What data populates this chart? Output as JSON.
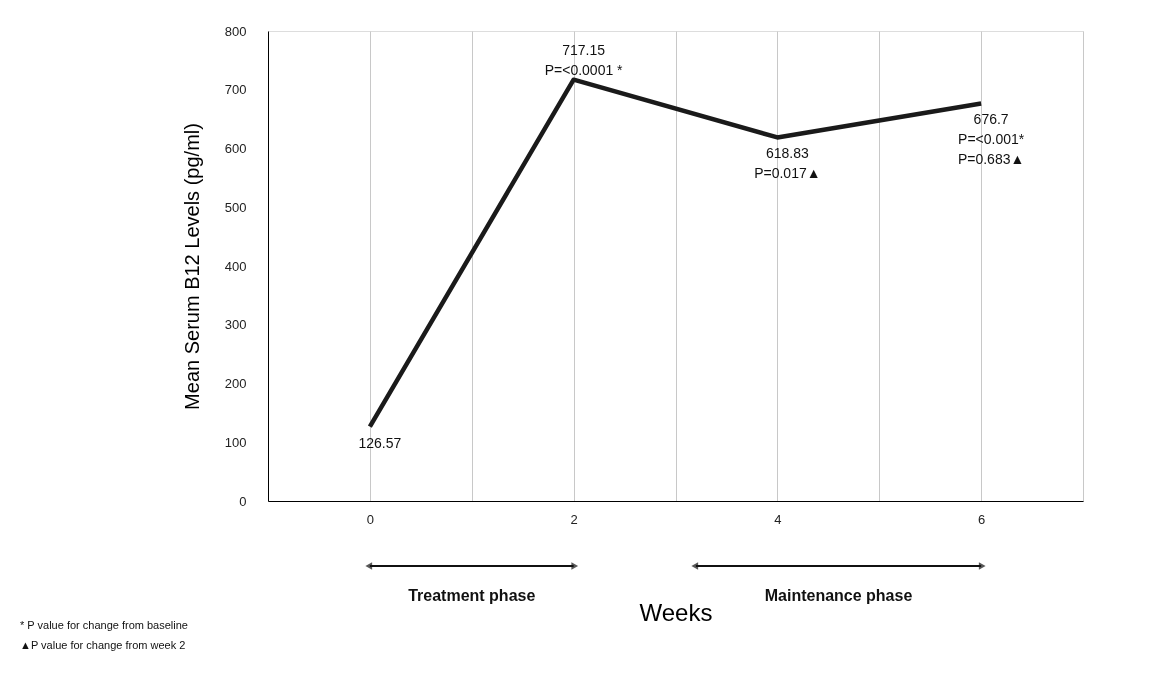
{
  "chart_data": {
    "type": "line",
    "xlabel": "Weeks",
    "ylabel": "Mean Serum B12 Levels (pg/ml)",
    "x": [
      0,
      2,
      4,
      6
    ],
    "series": [
      {
        "color": "#1a1a1a",
        "values": [
          126.57,
          717.15,
          618.83,
          676.7
        ],
        "value_labels": [
          "126.57",
          "717.15\nP=<0.0001 *",
          "618.83\nP=0.017▲",
          "676.7\nP=<0.001*\nP=0.683▲"
        ]
      }
    ],
    "xlim": [
      -1,
      7
    ],
    "xticks": [
      0,
      {
        "value": 1,
        "label": null
      },
      2,
      {
        "value": 3,
        "label": null
      },
      4,
      {
        "value": 5,
        "label": null
      },
      6,
      {
        "value": 7,
        "label": null
      }
    ],
    "ylim": [
      0,
      800
    ],
    "yticks": [
      0,
      100,
      200,
      300,
      400,
      500,
      600,
      700,
      800
    ],
    "grid": "x",
    "marker": "none",
    "line_style": "solid",
    "annotations": [
      "Treatment phase",
      "Maintenance phase",
      "* P value for change from baseline",
      "▲P value for change from week 2"
    ]
  }
}
